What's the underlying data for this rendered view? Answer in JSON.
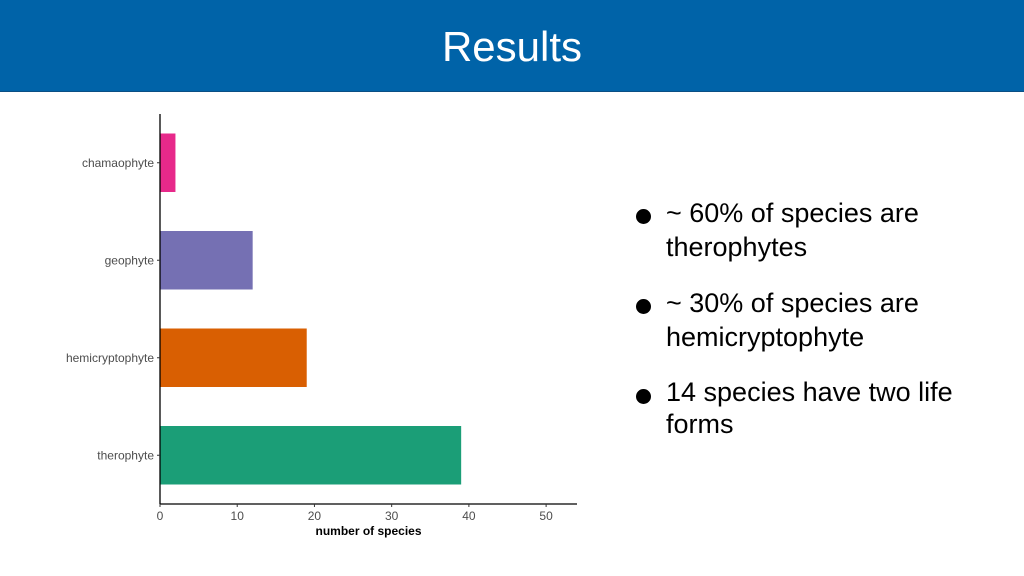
{
  "slide": {
    "title": "Results"
  },
  "bullets": [
    {
      "text": "~ 60% of species are therophytes"
    },
    {
      "text": "~ 30% of species are hemicryptophyte"
    },
    {
      "text": "14 species have two life forms"
    }
  ],
  "chart_data": {
    "type": "bar",
    "orientation": "horizontal",
    "categories": [
      "chamaophyte",
      "geophyte",
      "hemicryptophyte",
      "therophyte"
    ],
    "values": [
      2,
      12,
      19,
      39
    ],
    "colors": [
      "#e7298a",
      "#7570b3",
      "#d95f02",
      "#1b9e77"
    ],
    "title": "",
    "xlabel": "number of species",
    "ylabel": "",
    "xlim": [
      0,
      54
    ],
    "xticks": [
      "0",
      "10",
      "20",
      "30",
      "40",
      "50"
    ],
    "grid": false,
    "legend": "none"
  }
}
